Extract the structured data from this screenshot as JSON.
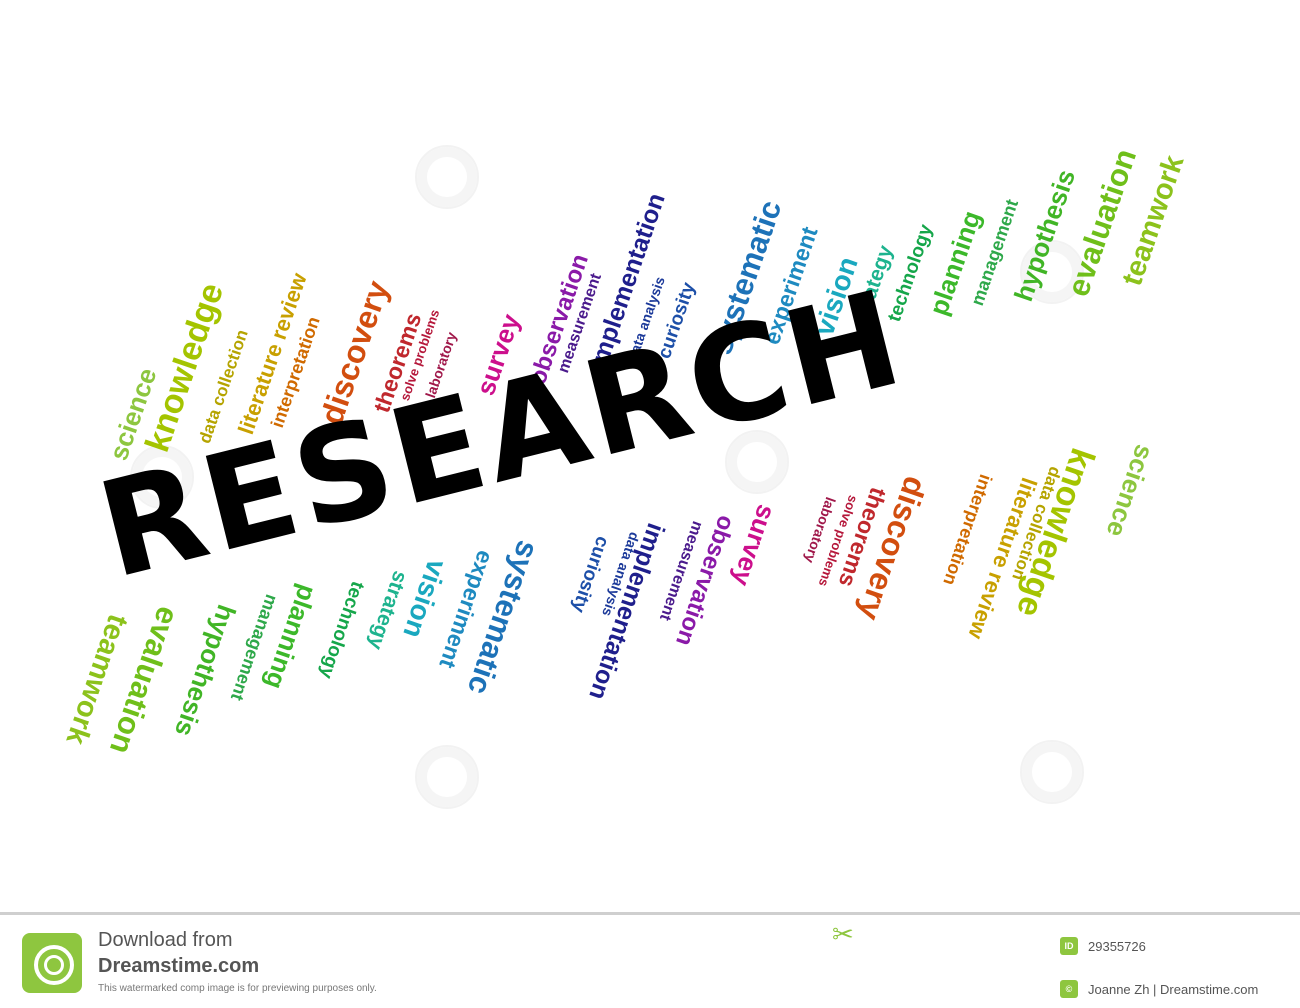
{
  "title": "RESEARCH",
  "keywords": [
    "science",
    "knowledge",
    "data collection",
    "literature review",
    "interpretation",
    "discovery",
    "theorems",
    "solve problems",
    "laboratory",
    "survey",
    "observation",
    "measurement",
    "implementation",
    "data analysis",
    "curiosity",
    "systematic",
    "experiment",
    "vision",
    "strategy",
    "technology",
    "planning",
    "management",
    "hypothesis",
    "evaluation",
    "teamwork"
  ],
  "colors": {
    "science": "#8dc63f",
    "knowledge": "#a4c400",
    "data collection": "#b5a400",
    "literature review": "#c8a000",
    "interpretation": "#d06a00",
    "discovery": "#d24e0f",
    "theorems": "#c0282d",
    "solve problems": "#b5173a",
    "laboratory": "#a0184a",
    "survey": "#cc0f8c",
    "observation": "#8a1aa8",
    "measurement": "#4a1a8c",
    "implementation": "#1f1f8c",
    "data analysis": "#1c3a9a",
    "curiosity": "#1d4fa8",
    "systematic": "#1d72b8",
    "experiment": "#1e8ac0",
    "vision": "#1aa8bf",
    "strategy": "#1db38e",
    "technology": "#15a64a",
    "planning": "#3cb82a",
    "management": "#2ea84a",
    "hypothesis": "#41b526",
    "evaluation": "#6fbf1a",
    "teamwork": "#8cc21c"
  },
  "footer": {
    "download_label": "Download from",
    "brand": "Dreamstime.com",
    "note": "This watermarked comp image is for previewing purposes only.",
    "id_badge": "ID",
    "image_id": "29355726",
    "copyright_badge": "©",
    "credit": "Joanne Zh | Dreamstime.com"
  }
}
